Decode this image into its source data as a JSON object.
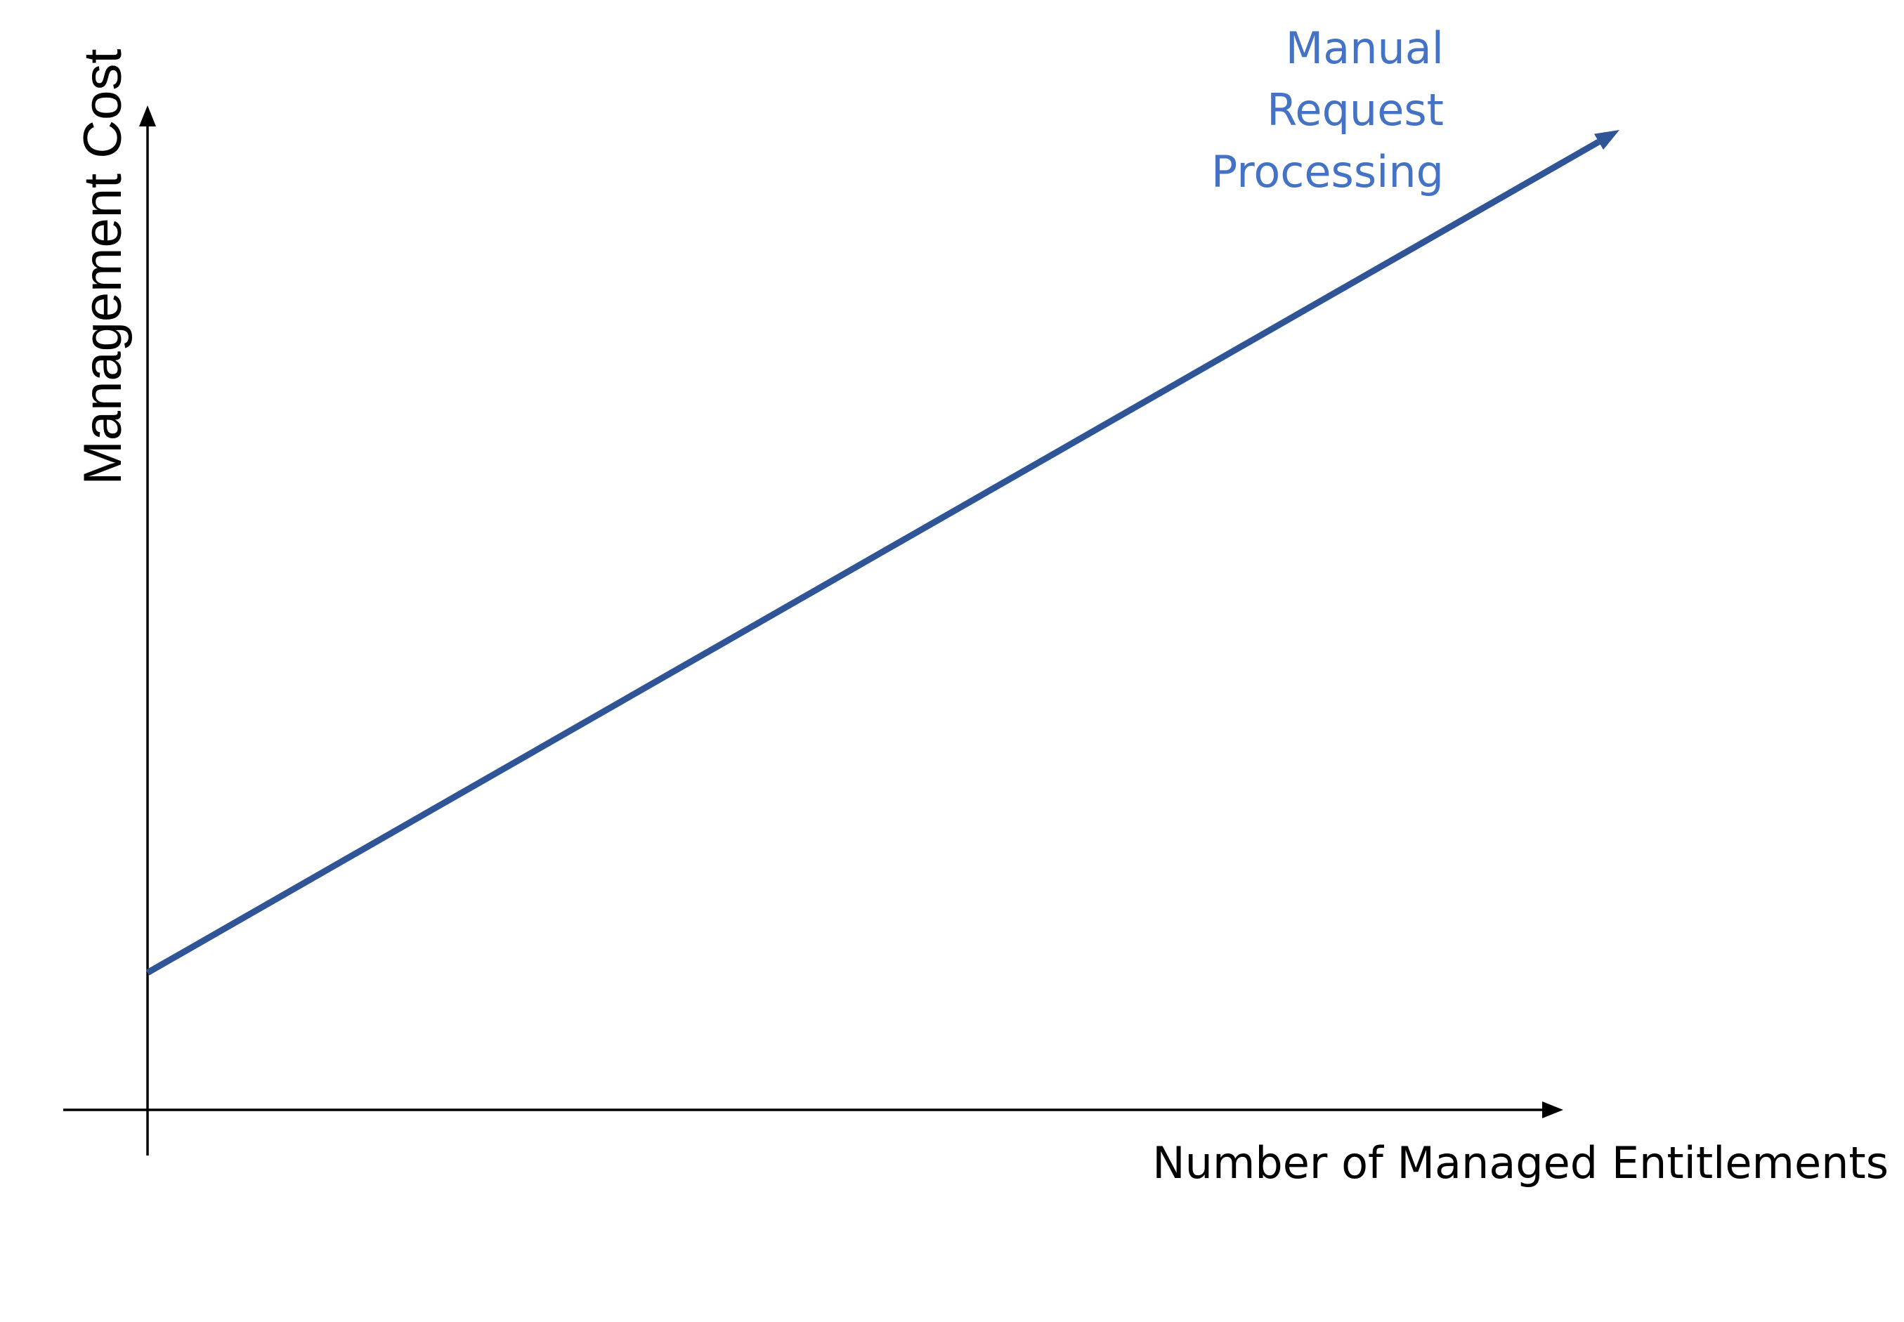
{
  "chart_data": {
    "type": "line",
    "xlabel": "Number of Managed Entitlements",
    "ylabel": "Management Cost",
    "grid": false,
    "legend": "none",
    "x_ticks_shown": false,
    "y_ticks_shown": false,
    "xlim": [
      0,
      100
    ],
    "ylim": [
      0,
      100
    ],
    "series": [
      {
        "color": "#2F5597",
        "x": [
          0,
          100
        ],
        "y": [
          14,
          100
        ]
      }
    ],
    "annotations": [
      {
        "lines": [
          "Manual",
          "Request",
          "Processing"
        ],
        "color": "#4472C4"
      }
    ]
  }
}
